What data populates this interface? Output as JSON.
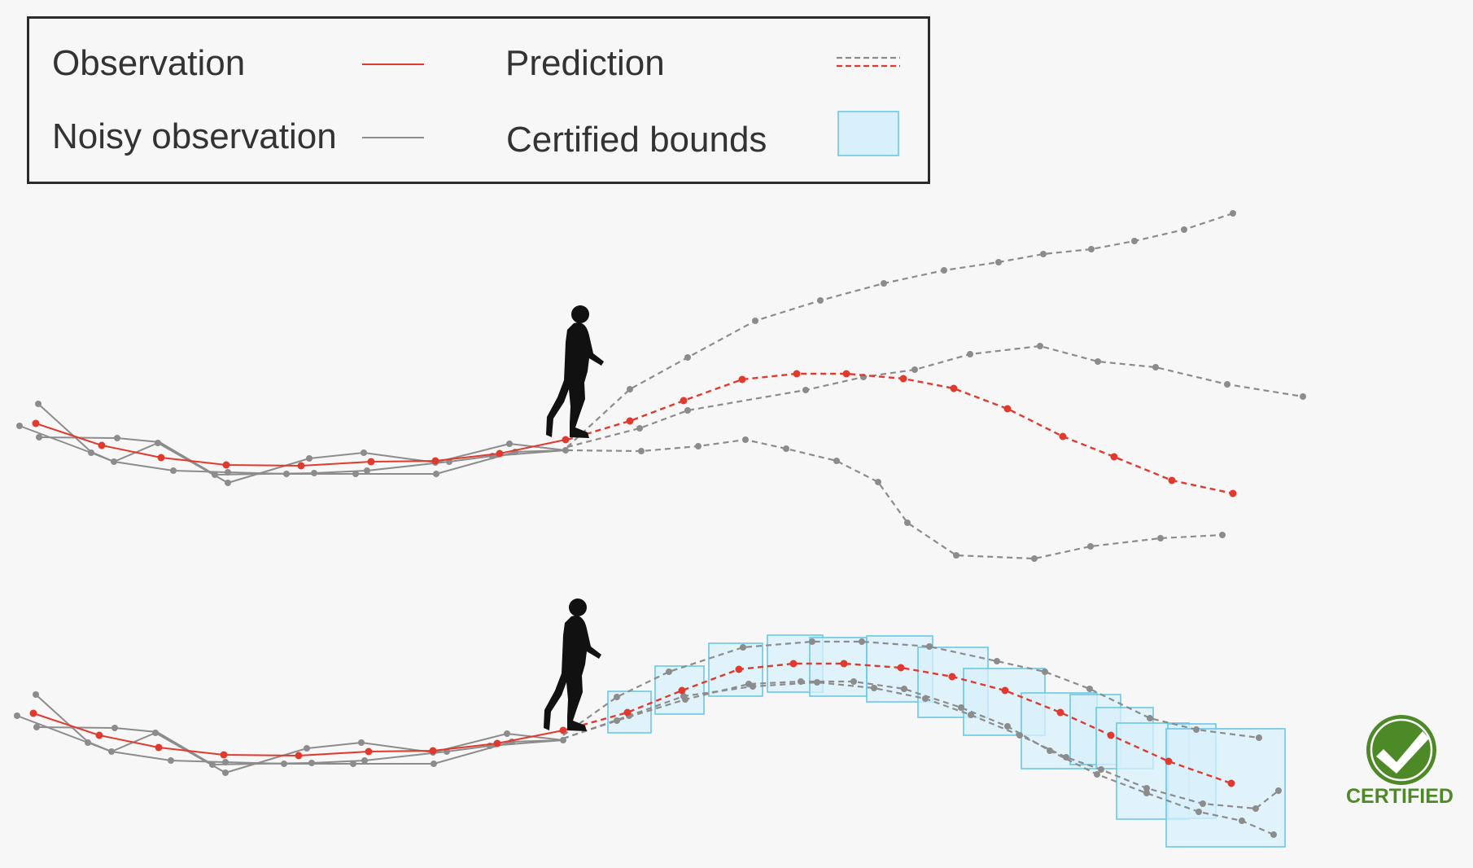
{
  "legend": {
    "observation": "Observation",
    "noisy_observation": "Noisy observation",
    "prediction": "Prediction",
    "certified_bounds": "Certified bounds"
  },
  "badge": {
    "label": "CERTIFIED",
    "icon": "check-icon"
  },
  "colors": {
    "observation": "#e03a2f",
    "noisy": "#8c8c8c",
    "bounds_fill": "#d8f0fb",
    "bounds_stroke": "#6cc7e6",
    "badge_green": "#4d8a27",
    "background": "#f7f7f7"
  },
  "figure_icons": [
    "walking-person-icon",
    "walking-person-icon",
    "certified-badge-icon"
  ]
}
